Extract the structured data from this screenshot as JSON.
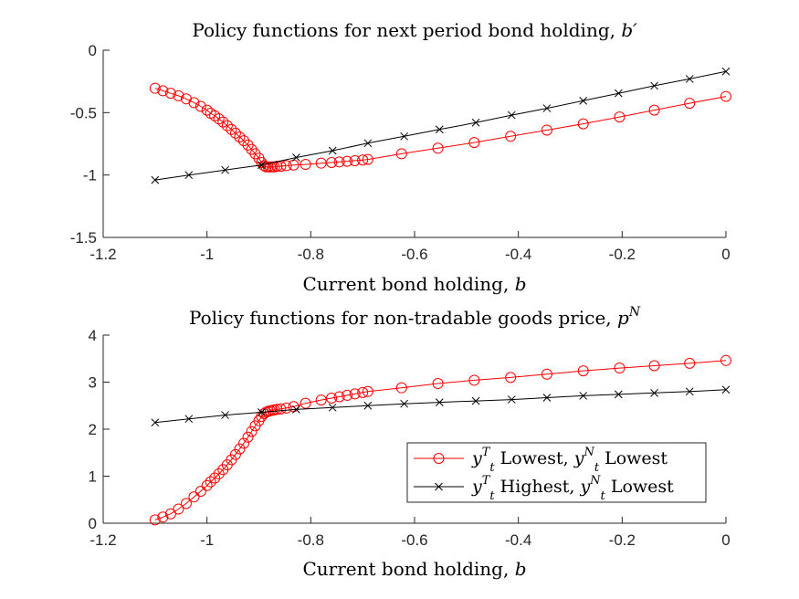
{
  "chart_data": [
    {
      "type": "line",
      "title": "Policy functions for next period bond holding,",
      "title_math": "b′",
      "xlabel": "Current bond holding,",
      "xlabel_math": "b",
      "ylabel": "",
      "xlim": [
        -1.2,
        0
      ],
      "ylim": [
        -1.5,
        0
      ],
      "xticks": [
        -1.2,
        -1,
        -0.8,
        -0.6,
        -0.4,
        -0.2,
        0
      ],
      "xtick_labels": [
        "-1.2",
        "-1",
        "-0.8",
        "-0.6",
        "-0.4",
        "-0.2",
        "0"
      ],
      "yticks": [
        0,
        -0.5,
        -1,
        -1.5
      ],
      "ytick_labels": [
        "0",
        "-0.5",
        "-1",
        "-1.5"
      ],
      "grid": false,
      "colors": {
        "series0": "#ff0000",
        "series1": "#000000"
      },
      "series": [
        {
          "marker": "circle",
          "x": [
            -1.1,
            -1.085,
            -1.07,
            -1.055,
            -1.04,
            -1.025,
            -1.012,
            -1.0,
            -0.993,
            -0.985,
            -0.977,
            -0.969,
            -0.961,
            -0.953,
            -0.945,
            -0.937,
            -0.929,
            -0.921,
            -0.914,
            -0.907,
            -0.9,
            -0.895,
            -0.89,
            -0.886,
            -0.882,
            -0.878,
            -0.874,
            -0.87,
            -0.865,
            -0.858,
            -0.847,
            -0.833,
            -0.81,
            -0.78,
            -0.76,
            -0.745,
            -0.73,
            -0.715,
            -0.7,
            -0.69,
            -0.625,
            -0.555,
            -0.485,
            -0.415,
            -0.345,
            -0.275,
            -0.205,
            -0.138,
            -0.07,
            0.0
          ],
          "y": [
            -0.305,
            -0.325,
            -0.345,
            -0.365,
            -0.39,
            -0.42,
            -0.45,
            -0.48,
            -0.505,
            -0.525,
            -0.55,
            -0.575,
            -0.605,
            -0.635,
            -0.665,
            -0.695,
            -0.725,
            -0.76,
            -0.795,
            -0.83,
            -0.865,
            -0.9,
            -0.925,
            -0.935,
            -0.935,
            -0.935,
            -0.935,
            -0.935,
            -0.93,
            -0.93,
            -0.925,
            -0.92,
            -0.915,
            -0.905,
            -0.9,
            -0.895,
            -0.89,
            -0.885,
            -0.88,
            -0.875,
            -0.83,
            -0.785,
            -0.74,
            -0.69,
            -0.64,
            -0.59,
            -0.535,
            -0.48,
            -0.425,
            -0.37
          ]
        },
        {
          "marker": "x",
          "x": [
            -1.1,
            -1.035,
            -0.965,
            -0.895,
            -0.828,
            -0.758,
            -0.69,
            -0.62,
            -0.552,
            -0.482,
            -0.413,
            -0.345,
            -0.275,
            -0.207,
            -0.138,
            -0.07,
            0.0
          ],
          "y": [
            -1.04,
            -1.0,
            -0.96,
            -0.92,
            -0.86,
            -0.805,
            -0.745,
            -0.69,
            -0.635,
            -0.58,
            -0.52,
            -0.465,
            -0.405,
            -0.345,
            -0.285,
            -0.23,
            -0.17
          ]
        }
      ]
    },
    {
      "type": "line",
      "title": "Policy functions for non-tradable goods price,",
      "title_math": "p",
      "title_sup": "N",
      "xlabel": "Current bond holding,",
      "xlabel_math": "b",
      "ylabel": "",
      "xlim": [
        -1.2,
        0
      ],
      "ylim": [
        0,
        4
      ],
      "xticks": [
        -1.2,
        -1,
        -0.8,
        -0.6,
        -0.4,
        -0.2,
        0
      ],
      "xtick_labels": [
        "-1.2",
        "-1",
        "-0.8",
        "-0.6",
        "-0.4",
        "-0.2",
        "0"
      ],
      "yticks": [
        0,
        1,
        2,
        3,
        4
      ],
      "ytick_labels": [
        "0",
        "1",
        "2",
        "3",
        "4"
      ],
      "grid": false,
      "legend_placement": "bottom-right",
      "legend": [
        {
          "math": "y",
          "sup": "T",
          "sub": "t",
          "text1": " Lowest, ",
          "math2": "y",
          "sup2": "N",
          "sub2": "t",
          "text2": " Lowest"
        },
        {
          "math": "y",
          "sup": "T",
          "sub": "t",
          "text1": " Highest, ",
          "math2": "y",
          "sup2": "N",
          "sub2": "t",
          "text2": " Lowest"
        }
      ],
      "colors": {
        "series0": "#ff0000",
        "series1": "#000000"
      },
      "series": [
        {
          "marker": "circle",
          "x": [
            -1.1,
            -1.085,
            -1.07,
            -1.055,
            -1.04,
            -1.025,
            -1.012,
            -1.0,
            -0.993,
            -0.985,
            -0.977,
            -0.969,
            -0.961,
            -0.953,
            -0.945,
            -0.937,
            -0.929,
            -0.921,
            -0.914,
            -0.907,
            -0.9,
            -0.895,
            -0.89,
            -0.886,
            -0.882,
            -0.878,
            -0.874,
            -0.87,
            -0.865,
            -0.858,
            -0.847,
            -0.833,
            -0.81,
            -0.78,
            -0.76,
            -0.745,
            -0.73,
            -0.715,
            -0.7,
            -0.69,
            -0.625,
            -0.555,
            -0.485,
            -0.415,
            -0.345,
            -0.275,
            -0.205,
            -0.138,
            -0.07,
            0.0
          ],
          "y": [
            0.07,
            0.13,
            0.2,
            0.3,
            0.42,
            0.56,
            0.68,
            0.8,
            0.88,
            0.96,
            1.05,
            1.14,
            1.24,
            1.35,
            1.46,
            1.58,
            1.7,
            1.83,
            1.95,
            2.07,
            2.18,
            2.27,
            2.33,
            2.36,
            2.38,
            2.39,
            2.4,
            2.41,
            2.42,
            2.43,
            2.45,
            2.48,
            2.55,
            2.62,
            2.66,
            2.69,
            2.72,
            2.75,
            2.78,
            2.8,
            2.88,
            2.97,
            3.04,
            3.1,
            3.17,
            3.24,
            3.3,
            3.35,
            3.4,
            3.46
          ]
        },
        {
          "marker": "x",
          "x": [
            -1.1,
            -1.035,
            -0.965,
            -0.895,
            -0.828,
            -0.758,
            -0.69,
            -0.62,
            -0.552,
            -0.482,
            -0.413,
            -0.345,
            -0.275,
            -0.207,
            -0.138,
            -0.07,
            0.0
          ],
          "y": [
            2.14,
            2.22,
            2.3,
            2.36,
            2.42,
            2.46,
            2.5,
            2.54,
            2.57,
            2.6,
            2.63,
            2.67,
            2.71,
            2.74,
            2.77,
            2.8,
            2.84
          ]
        }
      ]
    }
  ]
}
